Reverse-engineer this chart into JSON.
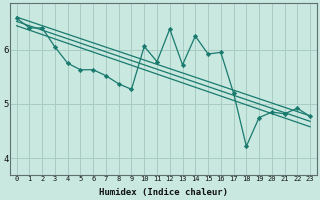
{
  "xlabel": "Humidex (Indice chaleur)",
  "ylabel": "",
  "bg_color": "#c8e8e0",
  "grid_color": "#a8ccc4",
  "line_color": "#1a7a6e",
  "marker_color": "#1a7a6e",
  "xlim": [
    -0.5,
    23.5
  ],
  "ylim": [
    3.7,
    6.85
  ],
  "yticks": [
    4,
    5,
    6
  ],
  "xticks": [
    0,
    1,
    2,
    3,
    4,
    5,
    6,
    7,
    8,
    9,
    10,
    11,
    12,
    13,
    14,
    15,
    16,
    17,
    18,
    19,
    20,
    21,
    22,
    23
  ],
  "data_x": [
    0,
    1,
    2,
    3,
    4,
    5,
    6,
    7,
    8,
    9,
    10,
    11,
    12,
    13,
    14,
    15,
    16,
    17,
    18,
    19,
    20,
    21,
    22,
    23
  ],
  "data_y": [
    6.58,
    6.4,
    6.4,
    6.05,
    5.75,
    5.63,
    5.63,
    5.52,
    5.37,
    5.27,
    6.06,
    5.78,
    6.38,
    5.72,
    6.25,
    5.92,
    5.95,
    5.2,
    4.22,
    4.75,
    4.85,
    4.82,
    4.92,
    4.77
  ],
  "trend1_x": [
    0,
    23
  ],
  "trend1_y": [
    6.6,
    4.78
  ],
  "trend2_x": [
    0,
    23
  ],
  "trend2_y": [
    6.52,
    4.68
  ],
  "trend3_x": [
    0,
    23
  ],
  "trend3_y": [
    6.44,
    4.58
  ],
  "xlabel_fontsize": 6.5,
  "xlabel_fontweight": "bold",
  "tick_fontsize_x": 5.0,
  "tick_fontsize_y": 6.5
}
